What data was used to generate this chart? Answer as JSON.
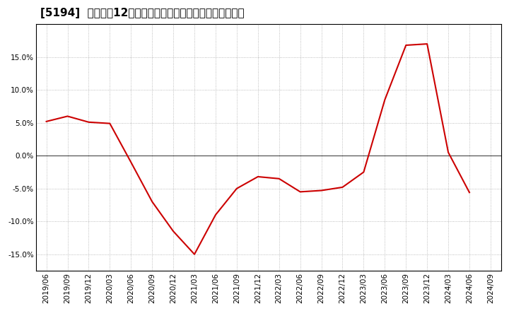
{
  "title": "[5194]  売上高の12か月移動合計の対前年同期増減率の推移",
  "line_color": "#cc0000",
  "background_color": "#ffffff",
  "plot_bg_color": "#ffffff",
  "grid_color": "#aaaaaa",
  "dates": [
    "2019/06",
    "2019/09",
    "2019/12",
    "2020/03",
    "2020/06",
    "2020/09",
    "2020/12",
    "2021/03",
    "2021/06",
    "2021/09",
    "2021/12",
    "2022/03",
    "2022/06",
    "2022/09",
    "2022/12",
    "2023/03",
    "2023/06",
    "2023/09",
    "2023/12",
    "2024/03",
    "2024/06",
    "2024/09"
  ],
  "values": [
    5.2,
    6.0,
    5.1,
    4.9,
    -1.0,
    -7.0,
    -11.5,
    -15.0,
    -9.0,
    -5.0,
    -3.2,
    -3.5,
    -5.5,
    -5.3,
    -4.8,
    -2.5,
    8.5,
    16.8,
    17.0,
    0.5,
    -5.6,
    null
  ],
  "ylim": [
    -17.5,
    20.0
  ],
  "yticks": [
    -15.0,
    -10.0,
    -5.0,
    0.0,
    5.0,
    10.0,
    15.0
  ],
  "zero_line_color": "#555555",
  "title_fontsize": 11,
  "tick_fontsize": 7.5
}
